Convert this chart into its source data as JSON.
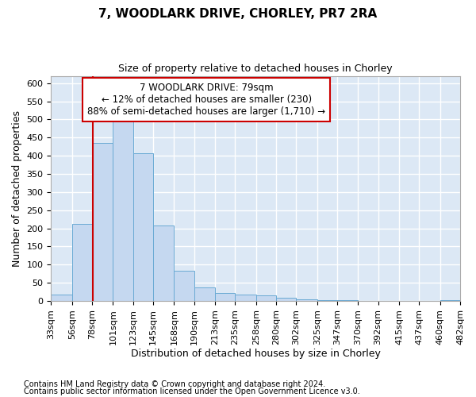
{
  "title1": "7, WOODLARK DRIVE, CHORLEY, PR7 2RA",
  "title2": "Size of property relative to detached houses in Chorley",
  "xlabel": "Distribution of detached houses by size in Chorley",
  "ylabel": "Number of detached properties",
  "footnote1": "Contains HM Land Registry data © Crown copyright and database right 2024.",
  "footnote2": "Contains public sector information licensed under the Open Government Licence v3.0.",
  "annotation_title": "7 WOODLARK DRIVE: 79sqm",
  "annotation_line1": "← 12% of detached houses are smaller (230)",
  "annotation_line2": "88% of semi-detached houses are larger (1,710) →",
  "bar_color": "#c5d8f0",
  "bar_edge_color": "#6aaad4",
  "red_line_x": 79,
  "bins": [
    33,
    56,
    78,
    101,
    123,
    145,
    168,
    190,
    213,
    235,
    258,
    280,
    302,
    325,
    347,
    370,
    392,
    415,
    437,
    460,
    482
  ],
  "values": [
    18,
    212,
    435,
    500,
    408,
    208,
    83,
    37,
    22,
    18,
    15,
    10,
    5,
    3,
    2,
    1,
    0,
    0,
    0,
    3
  ],
  "ylim": [
    0,
    620
  ],
  "yticks": [
    0,
    50,
    100,
    150,
    200,
    250,
    300,
    350,
    400,
    450,
    500,
    550,
    600
  ],
  "background_color": "#dce8f5",
  "grid_color": "#ffffff",
  "fig_background": "#ffffff",
  "annotation_box_color": "#ffffff",
  "annotation_box_edge": "#cc0000",
  "red_line_color": "#cc0000"
}
